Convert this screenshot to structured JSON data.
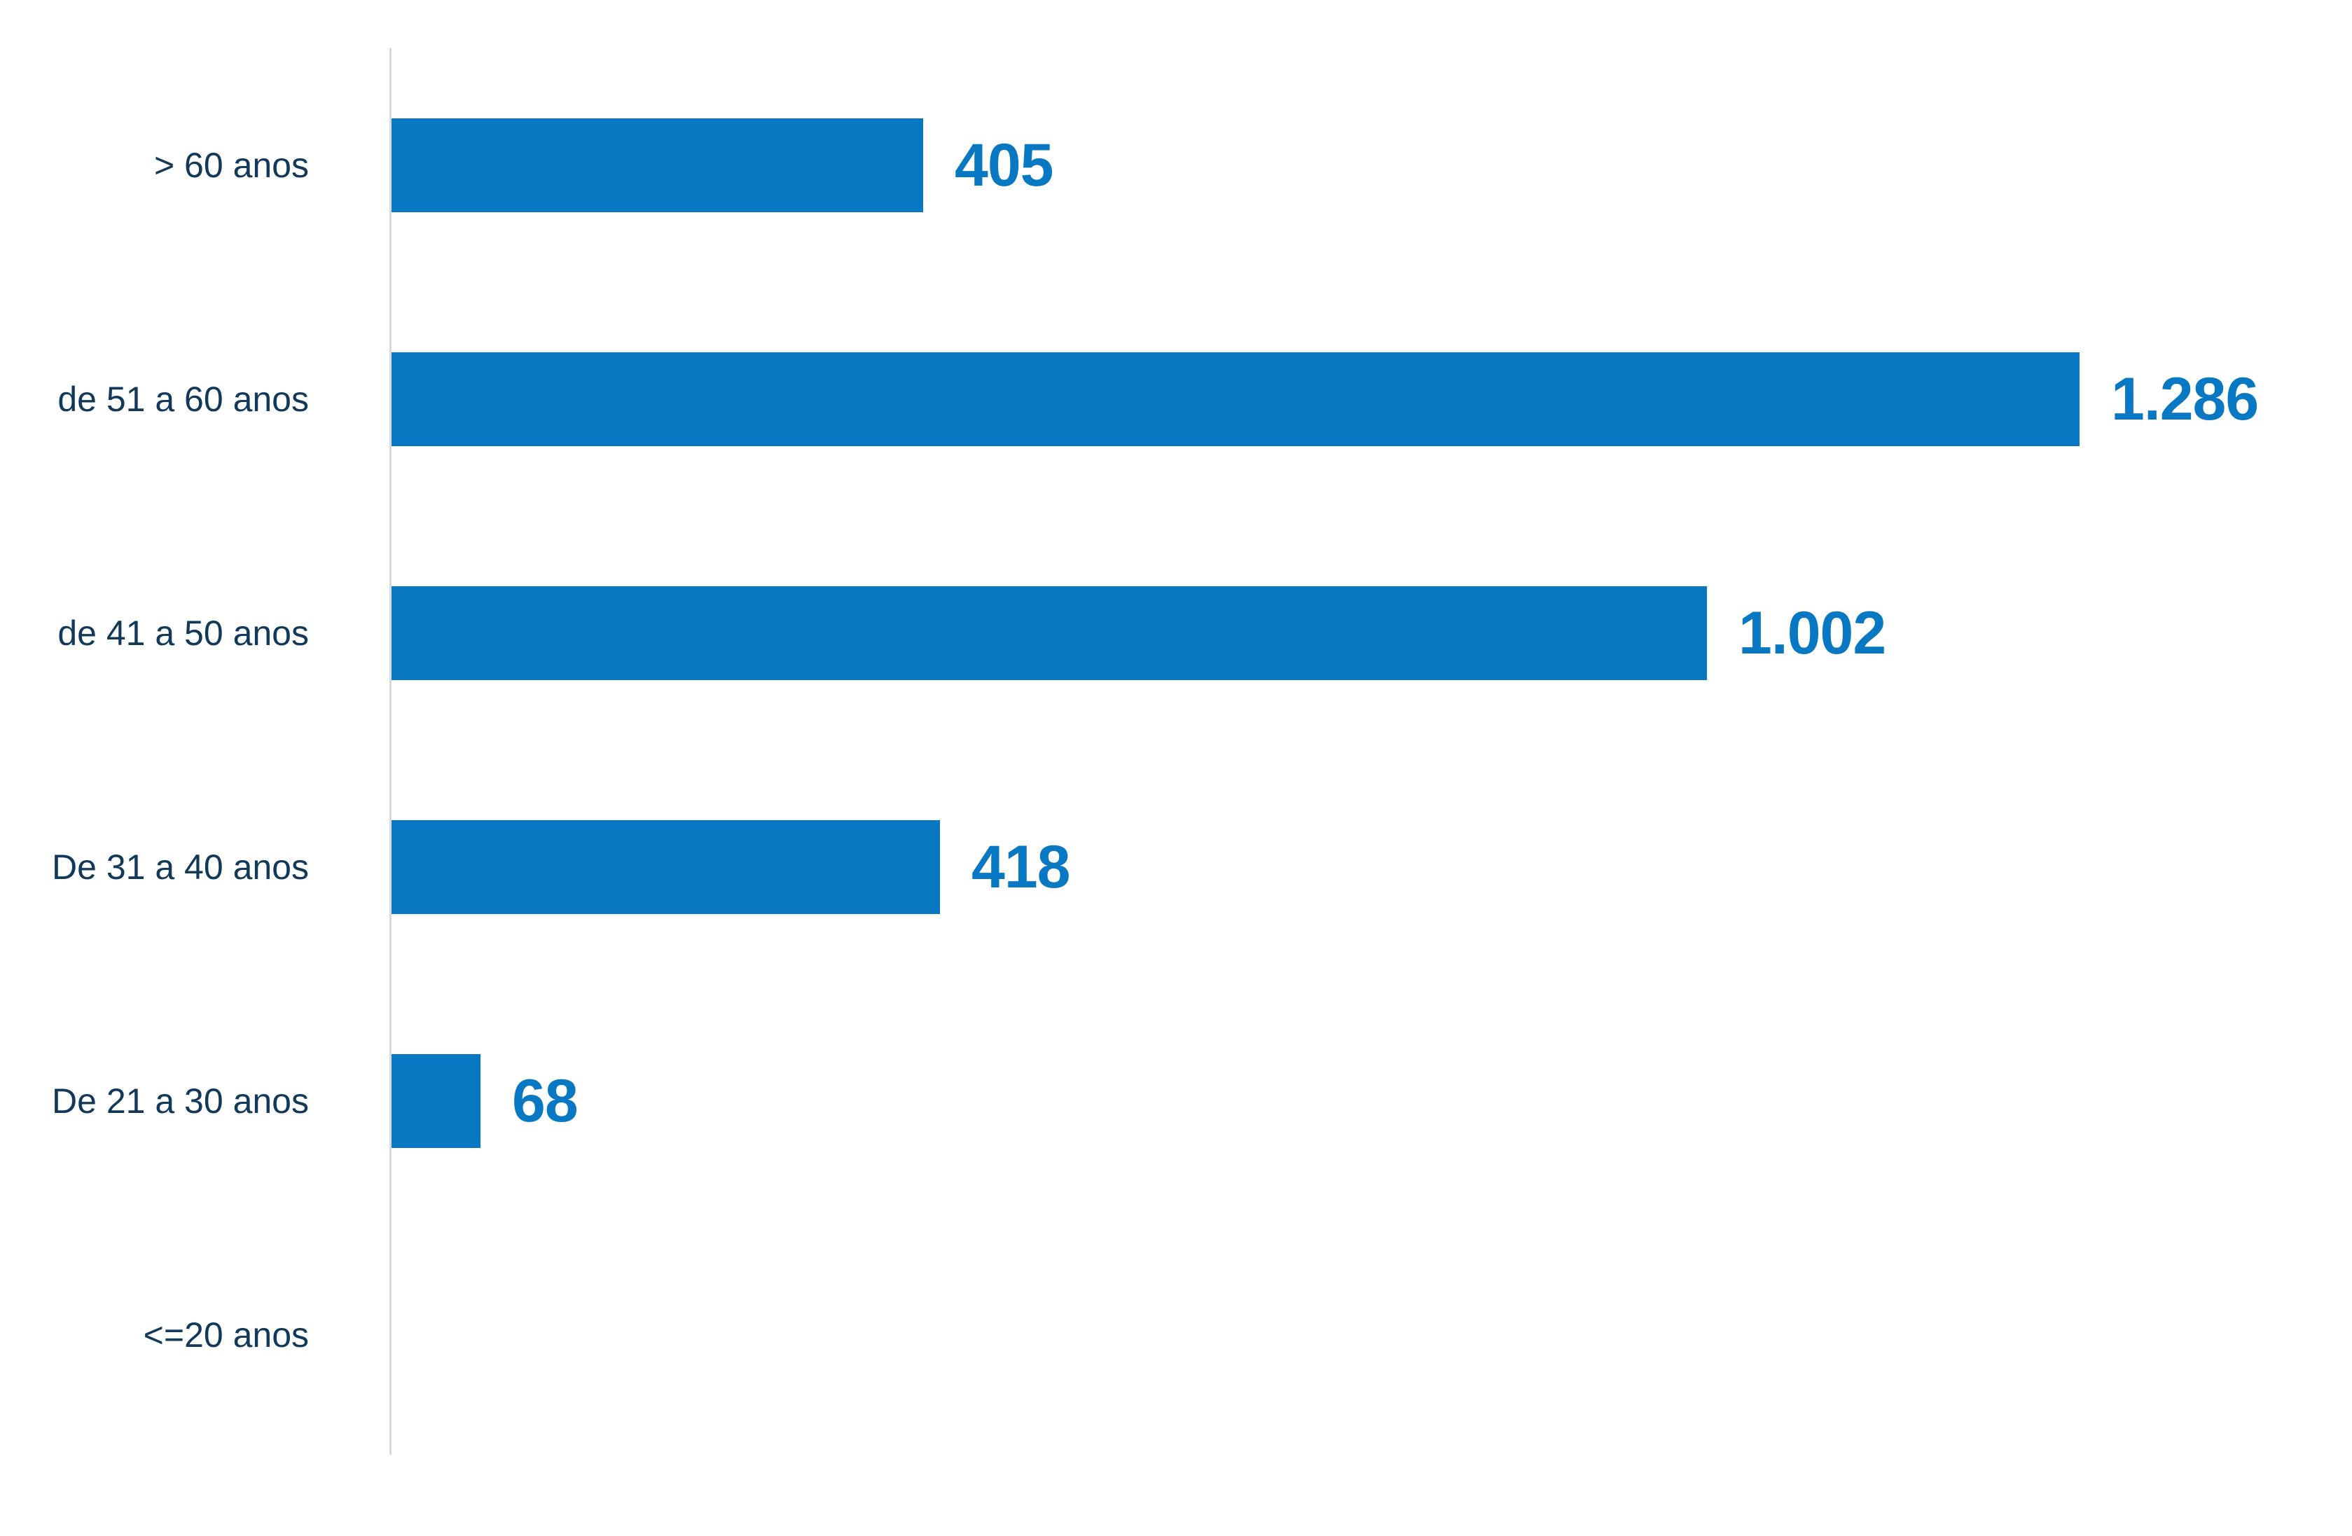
{
  "chart_data": {
    "type": "bar",
    "orientation": "horizontal",
    "title": "",
    "xlabel": "",
    "ylabel": "",
    "categories": [
      "> 60 anos",
      "de 51 a 60 anos",
      "de 41 a 50 anos",
      "De 31 a 40 anos",
      "De 21 a 30 anos",
      "<=20 anos"
    ],
    "values": [
      405,
      1286,
      1002,
      418,
      68,
      0
    ],
    "value_labels": [
      "405",
      "1.286",
      "1.002",
      "418",
      "68",
      ""
    ],
    "xlim": [
      0,
      1430
    ],
    "grid": false,
    "legend": false,
    "bar_order_top_to_bottom": true
  },
  "colors": {
    "bar": "#0878C3",
    "value_label": "#0878C3",
    "category_label": "#12395A",
    "axis_line": "#D9D9D9",
    "background": "#FFFFFF"
  }
}
